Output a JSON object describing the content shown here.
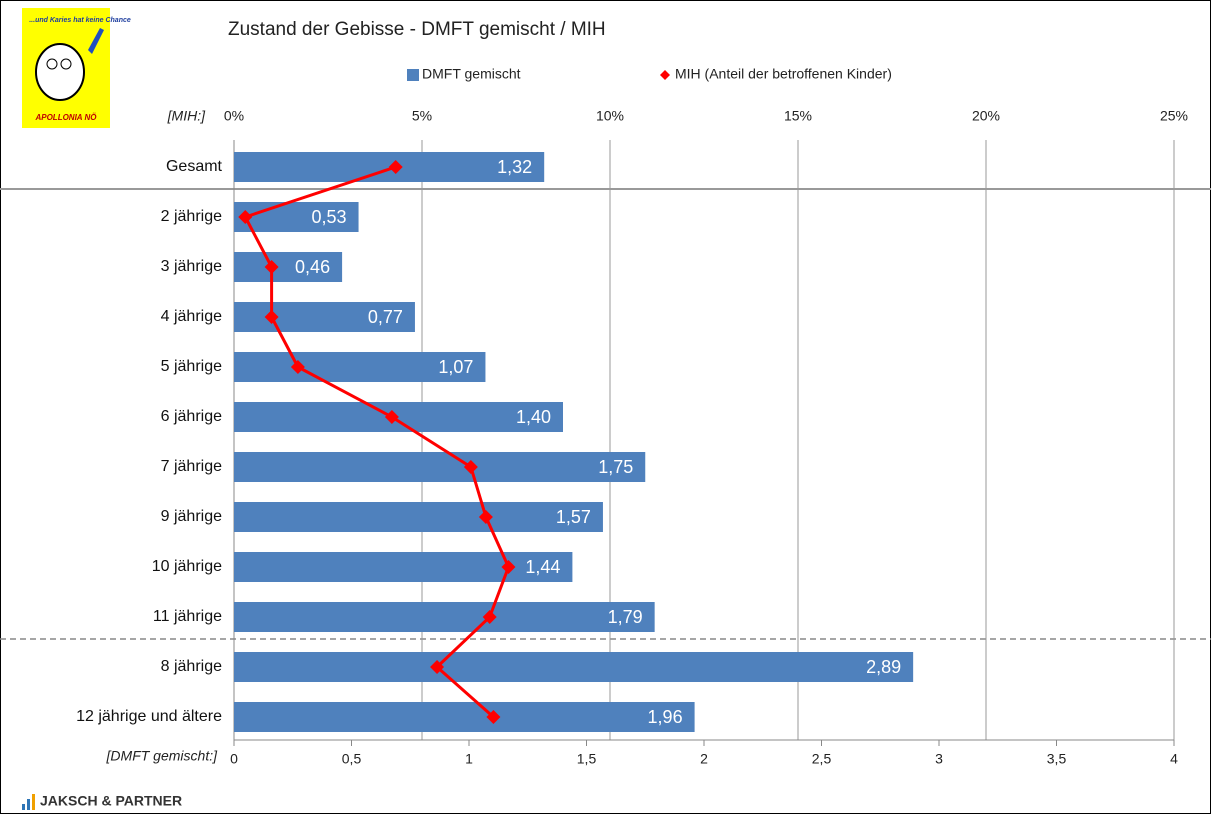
{
  "chart_data": {
    "type": "bar",
    "orientation": "horizontal",
    "title": "Zustand der Gebisse - DMFT gemischt / MIH",
    "xlabel": "[DMFT gemischt:]",
    "x2label": "[MIH:]",
    "categories": [
      "Gesamt",
      "2 jährige",
      "3 jährige",
      "4 jährige",
      "5 jährige",
      "6 jährige",
      "7 jährige",
      "9 jährige",
      "10 jährige",
      "11 jährige",
      "8 jährige",
      "12 jährige und ältere"
    ],
    "series": [
      {
        "name": "DMFT gemischt",
        "type": "bar",
        "color": "#4f81bd",
        "values": [
          1.32,
          0.53,
          0.46,
          0.77,
          1.07,
          1.4,
          1.75,
          1.57,
          1.44,
          1.79,
          2.89,
          1.96
        ],
        "value_labels": [
          "1,32",
          "0,53",
          "0,46",
          "0,77",
          "1,07",
          "1,40",
          "1,75",
          "1,57",
          "1,44",
          "1,79",
          "2,89",
          "1,96"
        ]
      },
      {
        "name": "MIH (Anteil der betroffenen Kinder)",
        "type": "line",
        "axis": "x2",
        "color": "#ff0000",
        "values": [
          4.3,
          0.3,
          1.0,
          1.0,
          1.7,
          4.2,
          6.3,
          6.7,
          7.3,
          6.8,
          5.4,
          6.9
        ]
      }
    ],
    "xlim": [
      0,
      4
    ],
    "xticks": [
      0,
      {
        "value": 0.5,
        "label": "0,5"
      },
      1,
      {
        "value": 1.5,
        "label": "1,5"
      },
      2,
      {
        "value": 2.5,
        "label": "2,5"
      },
      3,
      {
        "value": 3.5,
        "label": "3,5"
      },
      4
    ],
    "x2lim": [
      0,
      25
    ],
    "x2ticks": [
      {
        "value": 0,
        "label": "0%"
      },
      {
        "value": 5,
        "label": "5%"
      },
      {
        "value": 10,
        "label": "10%"
      },
      {
        "value": 15,
        "label": "15%"
      },
      {
        "value": 20,
        "label": "20%"
      },
      {
        "value": 25,
        "label": "25%"
      }
    ],
    "grid": true,
    "legend": "top"
  },
  "branding": {
    "logo_tagline": "...und Karies hat keine Chance",
    "logo_name": "APOLLONIA NÖ",
    "footer": "JAKSCH & PARTNER"
  }
}
